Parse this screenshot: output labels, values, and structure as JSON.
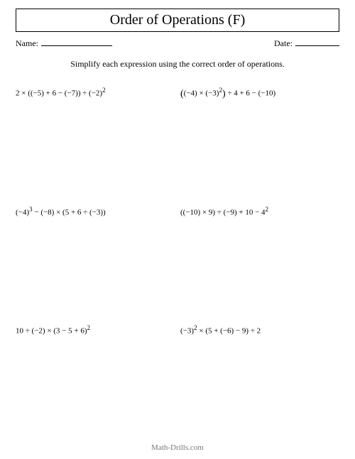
{
  "title": "Order of Operations (F)",
  "name_label": "Name:",
  "date_label": "Date:",
  "instructions": "Simplify each expression using the correct order of operations.",
  "problems": {
    "p1": {
      "text": "2 × ((−5) + 6 − (−7)) ÷ (−2)",
      "sup": "2"
    },
    "p2": {
      "lp": "(",
      "inner": "(−4) × (−3)",
      "sup": "2",
      "rp": ")",
      "tail": " ÷ 4 + 6 − (−10)"
    },
    "p3": {
      "pre": "(−4)",
      "sup": "3",
      "tail": " − (−8) × (5 + 6 ÷ (−3))"
    },
    "p4": {
      "pre": "((−10) × 9) ÷ (−9) + 10 − 4",
      "sup": "2"
    },
    "p5": {
      "pre": "10 ÷ (−2) × (3 − 5 + 6)",
      "sup": "2"
    },
    "p6": {
      "pre": "(−3)",
      "sup": "2",
      "tail": " × (5 + (−6) − 9) ÷ 2"
    }
  },
  "footer": "Math-Drills.com",
  "colors": {
    "text": "#000000",
    "background": "#ffffff",
    "footer": "#777777",
    "rule": "#000000"
  },
  "fonts": {
    "title_size_pt": 15,
    "body_size_pt": 9,
    "math_size_pt": 8
  }
}
